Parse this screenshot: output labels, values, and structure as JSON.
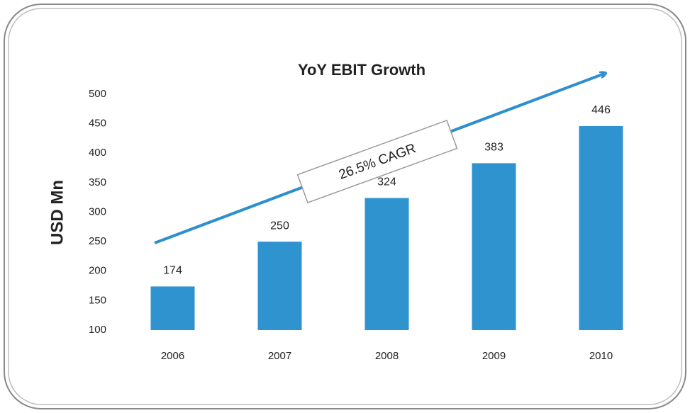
{
  "chart_data": {
    "type": "bar",
    "title": "YoY EBIT Growth",
    "y_label": "USD Mn",
    "categories": [
      "2006",
      "2007",
      "2008",
      "2009",
      "2010"
    ],
    "values": [
      174,
      250,
      324,
      383,
      446
    ],
    "color": "#2f93cf",
    "ylim": [
      100,
      500
    ],
    "yticks": [
      100,
      150,
      200,
      250,
      300,
      350,
      400,
      450,
      500
    ],
    "grid": false,
    "annotation": "26.5% CAGR"
  }
}
